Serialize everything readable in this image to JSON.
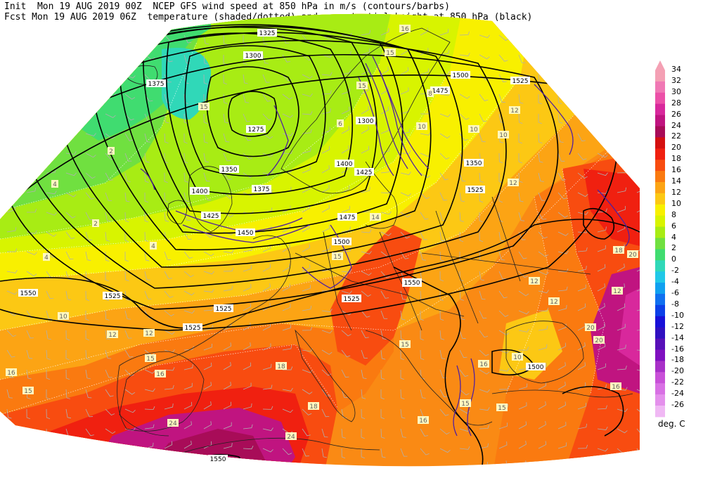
{
  "header": {
    "line1": "Init  Mon 19 AUG 2019 00Z  NCEP GFS wind speed at 850 hPa in m/s (contours/barbs)",
    "line2": "Fcst Mon 19 AUG 2019 06Z  temperature (shaded/dotted) and geopotential height at 850 hPa (black)"
  },
  "legend": {
    "unit": "deg. C",
    "levels": [
      {
        "value": "34",
        "color": "#f4a0b4"
      },
      {
        "value": "32",
        "color": "#f078b4"
      },
      {
        "value": "30",
        "color": "#ec50a8"
      },
      {
        "value": "28",
        "color": "#d8289c"
      },
      {
        "value": "26",
        "color": "#c01480"
      },
      {
        "value": "24",
        "color": "#a80c58"
      },
      {
        "value": "22",
        "color": "#d41010"
      },
      {
        "value": "20",
        "color": "#f02010"
      },
      {
        "value": "18",
        "color": "#f84c10"
      },
      {
        "value": "16",
        "color": "#fa7a10"
      },
      {
        "value": "14",
        "color": "#fca414"
      },
      {
        "value": "12",
        "color": "#fcc814"
      },
      {
        "value": "10",
        "color": "#f8f000"
      },
      {
        "value": "8",
        "color": "#d8f400"
      },
      {
        "value": "6",
        "color": "#a8ec14"
      },
      {
        "value": "4",
        "color": "#70e040"
      },
      {
        "value": "2",
        "color": "#40dc70"
      },
      {
        "value": "0",
        "color": "#30d8b8"
      },
      {
        "value": "-2",
        "color": "#20c8e8"
      },
      {
        "value": "-4",
        "color": "#10a0f0"
      },
      {
        "value": "-6",
        "color": "#1070f0"
      },
      {
        "value": "-8",
        "color": "#0c40e8"
      },
      {
        "value": "-10",
        "color": "#1810d8"
      },
      {
        "value": "-12",
        "color": "#3010c0"
      },
      {
        "value": "-14",
        "color": "#5810b8"
      },
      {
        "value": "-16",
        "color": "#8010c0"
      },
      {
        "value": "-18",
        "color": "#a830c8"
      },
      {
        "value": "-20",
        "color": "#c850d8"
      },
      {
        "value": "-22",
        "color": "#d870e4"
      },
      {
        "value": "-24",
        "color": "#e490ec"
      },
      {
        "value": "-26",
        "color": "#f0b8f4"
      }
    ]
  },
  "height_labels": [
    "1325",
    "1300",
    "1375",
    "1275",
    "1350",
    "1375",
    "1400",
    "1425",
    "1450",
    "1400",
    "1425",
    "1475",
    "1500",
    "1475",
    "1525",
    "1500",
    "1525",
    "1550",
    "1525",
    "1525",
    "1525",
    "1550",
    "1525",
    "1500",
    "1550",
    "1300",
    "1350",
    "1525"
  ],
  "temp_labels": [
    "16",
    "15",
    "15",
    "15",
    "12",
    "10",
    "10",
    "10",
    "4",
    "2",
    "2",
    "4",
    "4",
    "12",
    "12",
    "15",
    "18",
    "20",
    "24",
    "24",
    "16",
    "18",
    "15",
    "16",
    "15",
    "16",
    "18",
    "20",
    "12",
    "16",
    "16",
    "20",
    "10",
    "12",
    "10",
    "15",
    "12",
    "15",
    "14",
    "6",
    "8",
    "12",
    "15"
  ],
  "colors": {
    "height_contour": "#000000",
    "wind_contour": "#5020a0",
    "coastline": "#202020",
    "barb": "#b0b0b0",
    "label_bg": "#ffffff"
  }
}
